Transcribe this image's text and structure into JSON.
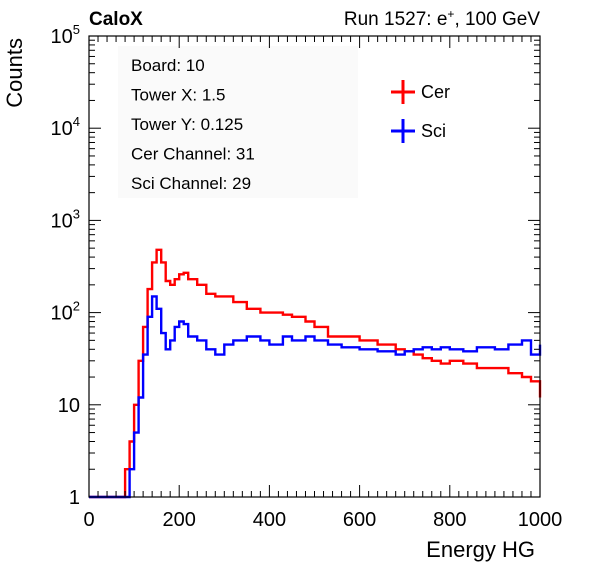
{
  "header": {
    "left": "CaloX",
    "run_prefix": "Run 1527: e",
    "run_sup": "+",
    "run_suffix": ", 100 GeV"
  },
  "info_box": [
    "Board: 10",
    "Tower X: 1.5",
    "Tower Y: 0.125",
    "Cer Channel: 31",
    "Sci Channel: 29"
  ],
  "chart_data": {
    "type": "line",
    "xlabel": "Energy HG",
    "ylabel": "Counts",
    "xlim": [
      0,
      1000
    ],
    "ylim": [
      1,
      100000
    ],
    "yscale": "log",
    "x_ticks": [
      0,
      200,
      400,
      600,
      800,
      1000
    ],
    "y_tick_labels": [
      {
        "value": 1,
        "base": "1",
        "exp": ""
      },
      {
        "value": 10,
        "base": "10",
        "exp": ""
      },
      {
        "value": 100,
        "base": "10",
        "exp": "2"
      },
      {
        "value": 1000,
        "base": "10",
        "exp": "3"
      },
      {
        "value": 10000,
        "base": "10",
        "exp": "4"
      },
      {
        "value": 100000,
        "base": "10",
        "exp": "5"
      }
    ],
    "legend_position": "top-right",
    "series": [
      {
        "name": "Cer",
        "color": "#ff0000",
        "x": [
          0,
          40,
          60,
          80,
          90,
          100,
          110,
          120,
          130,
          140,
          150,
          160,
          170,
          180,
          190,
          200,
          210,
          220,
          240,
          260,
          280,
          300,
          320,
          350,
          380,
          400,
          430,
          450,
          480,
          500,
          530,
          560,
          600,
          640,
          680,
          700,
          720,
          740,
          760,
          780,
          800,
          830,
          860,
          900,
          930,
          960,
          980,
          1000
        ],
        "y": [
          1,
          1,
          1,
          2,
          4,
          10,
          30,
          70,
          180,
          350,
          480,
          350,
          220,
          200,
          230,
          260,
          270,
          230,
          200,
          160,
          150,
          150,
          130,
          110,
          100,
          100,
          95,
          90,
          80,
          70,
          55,
          55,
          50,
          45,
          40,
          38,
          35,
          32,
          30,
          28,
          30,
          28,
          25,
          25,
          22,
          20,
          18,
          12
        ]
      },
      {
        "name": "Sci",
        "color": "#0000ff",
        "x": [
          0,
          40,
          60,
          80,
          90,
          100,
          110,
          120,
          130,
          140,
          150,
          160,
          170,
          180,
          190,
          200,
          210,
          220,
          240,
          260,
          280,
          300,
          320,
          350,
          380,
          400,
          430,
          450,
          480,
          500,
          530,
          560,
          600,
          640,
          680,
          700,
          720,
          740,
          760,
          780,
          800,
          830,
          860,
          900,
          930,
          960,
          980,
          1000
        ],
        "y": [
          1,
          1,
          1,
          1,
          2,
          5,
          12,
          35,
          90,
          150,
          110,
          60,
          40,
          50,
          70,
          80,
          75,
          55,
          50,
          40,
          35,
          45,
          50,
          55,
          50,
          45,
          55,
          50,
          55,
          50,
          45,
          42,
          40,
          38,
          35,
          38,
          40,
          42,
          40,
          42,
          40,
          38,
          42,
          40,
          45,
          50,
          35,
          45
        ]
      }
    ]
  }
}
